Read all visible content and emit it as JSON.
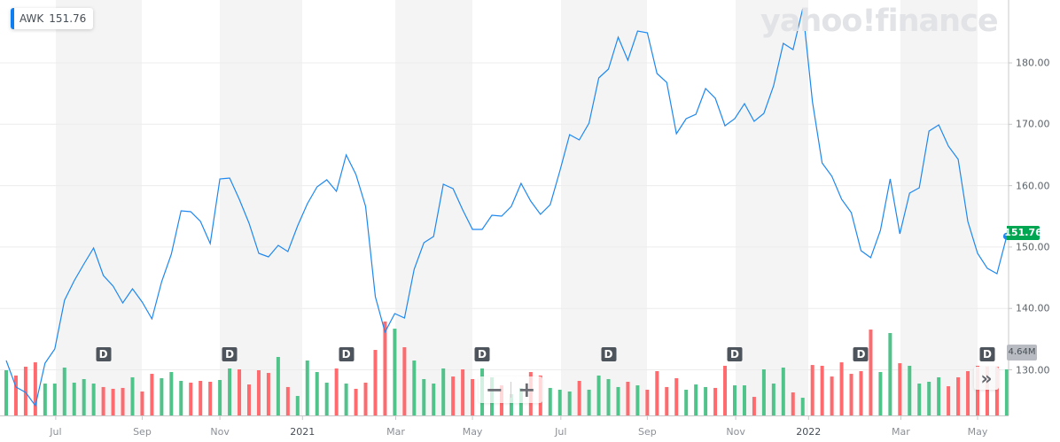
{
  "legend": {
    "ticker": "AWK",
    "price": "151.76"
  },
  "watermark": "yahoo!finance",
  "price_tag": "151.76",
  "volume_tag": "4.64M",
  "controls": {
    "zoom_out": "−",
    "zoom_in": "+",
    "more": "»"
  },
  "dividend_label": "D",
  "colors": {
    "line": "#1e88f0",
    "up": "#4fc38a",
    "down": "#ff6a6e",
    "band": "#f4f4f4",
    "grid": "#ececec",
    "price_tag": "#00a651"
  },
  "chart_data": {
    "type": "line",
    "title": "AWK",
    "interval": "weekly",
    "ylim": [
      124,
      189
    ],
    "y_ticks": [
      "180.00",
      "170.00",
      "160.00",
      "150.00",
      "140.00",
      "130.00"
    ],
    "y_tick_values": [
      180,
      170,
      160,
      150,
      140,
      130
    ],
    "x_ticks": [
      {
        "label": "Jul",
        "index": 5.1,
        "year": false
      },
      {
        "label": "Sep",
        "index": 14,
        "year": false
      },
      {
        "label": "Nov",
        "index": 22,
        "year": false
      },
      {
        "label": "2021",
        "index": 30.5,
        "year": true
      },
      {
        "label": "Mar",
        "index": 40.1,
        "year": false
      },
      {
        "label": "May",
        "index": 48,
        "year": false
      },
      {
        "label": "Jul",
        "index": 57.1,
        "year": false
      },
      {
        "label": "Sep",
        "index": 66,
        "year": false
      },
      {
        "label": "Nov",
        "index": 75.1,
        "year": false
      },
      {
        "label": "2022",
        "index": 82.6,
        "year": true
      },
      {
        "label": "Mar",
        "index": 92.1,
        "year": false
      },
      {
        "label": "May",
        "index": 100,
        "year": false
      }
    ],
    "close": [
      131.52,
      127.19,
      126.32,
      124.16,
      131.08,
      133.39,
      141.33,
      144.5,
      147.24,
      149.84,
      145.37,
      143.64,
      140.89,
      143.2,
      141.04,
      138.3,
      144.36,
      148.83,
      155.9,
      155.76,
      154.17,
      150.56,
      161.1,
      161.24,
      157.78,
      153.88,
      148.98,
      148.4,
      150.27,
      149.26,
      153.45,
      157.06,
      159.8,
      160.95,
      159.08,
      165.01,
      161.82,
      156.62,
      141.9,
      136.15,
      139.16,
      138.44,
      146.38,
      150.71,
      151.72,
      160.23,
      159.51,
      156.05,
      152.87,
      152.87,
      155.18,
      155.04,
      156.62,
      160.38,
      157.49,
      155.32,
      156.91,
      162.4,
      168.31,
      167.45,
      170.19,
      177.55,
      178.99,
      184.18,
      180.43,
      185.19,
      184.91,
      178.27,
      176.83,
      168.46,
      170.91,
      171.63,
      175.82,
      174.23,
      169.75,
      170.91,
      173.36,
      170.48,
      171.77,
      176.25,
      183.17,
      182.16,
      188.8,
      173.65,
      163.69,
      161.53,
      157.78,
      155.62,
      149.41,
      148.27,
      152.73,
      161.1,
      152.15,
      158.79,
      159.65,
      168.89,
      169.9,
      166.44,
      164.28,
      154.17,
      148.98,
      146.53,
      145.66,
      151.76
    ],
    "volume_millions": [
      4.55,
      4.02,
      4.91,
      5.35,
      3.21,
      3.21,
      4.82,
      3.3,
      3.66,
      3.21,
      2.86,
      2.68,
      2.77,
      3.84,
      2.41,
      4.19,
      3.75,
      4.37,
      3.48,
      3.3,
      3.48,
      3.39,
      3.57,
      4.73,
      4.64,
      3.12,
      4.55,
      4.28,
      5.89,
      2.86,
      1.96,
      5.53,
      4.37,
      3.3,
      4.73,
      3.21,
      2.68,
      3.3,
      6.6,
      9.46,
      8.74,
      6.87,
      5.53,
      3.66,
      3.21,
      4.73,
      3.92,
      4.64,
      3.66,
      4.73,
      3.84,
      3.03,
      2.14,
      2.77,
      4.37,
      4.02,
      2.77,
      2.59,
      2.41,
      3.48,
      2.59,
      4.02,
      3.66,
      2.86,
      3.39,
      3.03,
      2.59,
      4.46,
      2.86,
      3.75,
      2.59,
      3.12,
      2.86,
      2.77,
      5.0,
      3.03,
      3.03,
      1.87,
      4.64,
      3.21,
      4.82,
      2.32,
      1.78,
      5.08,
      5.0,
      3.92,
      5.35,
      4.19,
      4.46,
      8.65,
      4.37,
      8.3,
      5.26,
      5.0,
      3.21,
      3.39,
      3.84,
      2.94,
      3.84,
      4.46,
      5.0,
      4.91,
      4.91,
      4.64
    ],
    "volume_direction": [
      "up",
      "down",
      "down",
      "down",
      "up",
      "up",
      "up",
      "up",
      "up",
      "up",
      "down",
      "down",
      "down",
      "up",
      "down",
      "down",
      "up",
      "up",
      "up",
      "down",
      "down",
      "down",
      "up",
      "up",
      "down",
      "down",
      "down",
      "down",
      "up",
      "down",
      "up",
      "up",
      "up",
      "up",
      "down",
      "up",
      "down",
      "down",
      "down",
      "down",
      "up",
      "down",
      "up",
      "up",
      "up",
      "up",
      "down",
      "down",
      "down",
      "up",
      "up",
      "down",
      "up",
      "up",
      "down",
      "down",
      "up",
      "up",
      "up",
      "down",
      "up",
      "up",
      "up",
      "up",
      "down",
      "up",
      "down",
      "down",
      "down",
      "down",
      "up",
      "up",
      "up",
      "down",
      "down",
      "up",
      "up",
      "down",
      "up",
      "up",
      "up",
      "down",
      "up",
      "down",
      "down",
      "down",
      "down",
      "down",
      "down",
      "down",
      "up",
      "up",
      "down",
      "up",
      "up",
      "up",
      "up",
      "down",
      "down",
      "down",
      "down",
      "down",
      "down",
      "up"
    ],
    "dividend_indices": [
      10,
      23,
      35,
      49,
      62,
      75,
      88,
      101
    ],
    "last_price": 151.76,
    "last_volume": "4.64M"
  }
}
